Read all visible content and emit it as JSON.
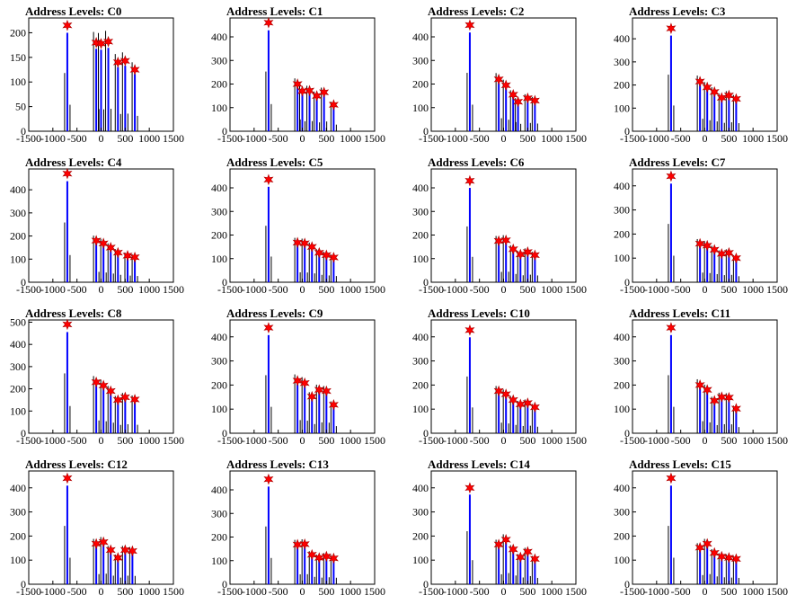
{
  "chart_data": {
    "type": "histogram",
    "xlim": [
      -1500,
      1500
    ],
    "x_ticks": [
      -1500,
      -1000,
      -500,
      0,
      500,
      1000,
      1500
    ],
    "colors": {
      "histogram": "#0000ff",
      "overlay": "#000000",
      "marker": "#ff0000"
    },
    "panels": [
      {
        "title": "Address Levels: C0",
        "ylim": [
          0,
          230
        ],
        "y_ticks": [
          0,
          50,
          100,
          150,
          200
        ],
        "peaks_x": [
          -700,
          -100,
          0,
          150,
          350,
          500,
          700
        ],
        "peaks_y": [
          215,
          180,
          178,
          182,
          140,
          143,
          125
        ]
      },
      {
        "title": "Address Levels: C1",
        "ylim": [
          0,
          480
        ],
        "y_ticks": [
          0,
          100,
          200,
          300,
          400
        ],
        "peaks_x": [
          -700,
          -100,
          0,
          150,
          300,
          450,
          650
        ],
        "peaks_y": [
          460,
          200,
          170,
          172,
          150,
          165,
          112
        ]
      },
      {
        "title": "Address Levels: C2",
        "ylim": [
          0,
          480
        ],
        "y_ticks": [
          0,
          100,
          200,
          300,
          400
        ],
        "peaks_x": [
          -700,
          -100,
          50,
          200,
          300,
          500,
          650
        ],
        "peaks_y": [
          450,
          220,
          195,
          155,
          125,
          140,
          130
        ]
      },
      {
        "title": "Address Levels: C3",
        "ylim": [
          0,
          490
        ],
        "y_ticks": [
          0,
          100,
          200,
          300,
          400
        ],
        "peaks_x": [
          -700,
          -100,
          50,
          200,
          350,
          500,
          650
        ],
        "peaks_y": [
          445,
          215,
          190,
          170,
          145,
          155,
          140
        ]
      },
      {
        "title": "Address Levels: C4",
        "ylim": [
          0,
          490
        ],
        "y_ticks": [
          0,
          100,
          200,
          300,
          400
        ],
        "peaks_x": [
          -700,
          -100,
          50,
          200,
          350,
          550,
          700
        ],
        "peaks_y": [
          470,
          180,
          168,
          150,
          128,
          115,
          108
        ]
      },
      {
        "title": "Address Levels: C5",
        "ylim": [
          0,
          480
        ],
        "y_ticks": [
          0,
          100,
          200,
          300,
          400
        ],
        "peaks_x": [
          -700,
          -100,
          50,
          200,
          350,
          500,
          650
        ],
        "peaks_y": [
          435,
          168,
          165,
          150,
          125,
          115,
          105
        ]
      },
      {
        "title": "Address Levels: C6",
        "ylim": [
          0,
          480
        ],
        "y_ticks": [
          0,
          100,
          200,
          300,
          400
        ],
        "peaks_x": [
          -700,
          -100,
          50,
          200,
          350,
          500,
          650
        ],
        "peaks_y": [
          430,
          175,
          178,
          140,
          118,
          128,
          115
        ]
      },
      {
        "title": "Address Levels: C7",
        "ylim": [
          0,
          470
        ],
        "y_ticks": [
          0,
          100,
          200,
          300,
          400
        ],
        "peaks_x": [
          -700,
          -100,
          50,
          200,
          350,
          500,
          650
        ],
        "peaks_y": [
          440,
          160,
          152,
          135,
          118,
          122,
          100
        ]
      },
      {
        "title": "Address Levels: C8",
        "ylim": [
          0,
          510
        ],
        "y_ticks": [
          0,
          100,
          200,
          300,
          400,
          500
        ],
        "peaks_x": [
          -700,
          -100,
          50,
          200,
          350,
          500,
          700
        ],
        "peaks_y": [
          490,
          230,
          215,
          190,
          150,
          162,
          152
        ]
      },
      {
        "title": "Address Levels: C9",
        "ylim": [
          0,
          470
        ],
        "y_ticks": [
          0,
          100,
          200,
          300,
          400
        ],
        "peaks_x": [
          -700,
          -100,
          50,
          200,
          350,
          500,
          650
        ],
        "peaks_y": [
          438,
          218,
          208,
          152,
          180,
          175,
          118
        ]
      },
      {
        "title": "Address Levels: C10",
        "ylim": [
          0,
          470
        ],
        "y_ticks": [
          0,
          100,
          200,
          300,
          400
        ],
        "peaks_x": [
          -700,
          -100,
          50,
          200,
          350,
          500,
          650
        ],
        "peaks_y": [
          428,
          175,
          162,
          138,
          120,
          125,
          108
        ]
      },
      {
        "title": "Address Levels: C11",
        "ylim": [
          0,
          470
        ],
        "y_ticks": [
          0,
          100,
          200,
          300,
          400
        ],
        "peaks_x": [
          -700,
          -100,
          50,
          200,
          350,
          500,
          650
        ],
        "peaks_y": [
          438,
          200,
          180,
          135,
          150,
          148,
          102
        ]
      },
      {
        "title": "Address Levels: C12",
        "ylim": [
          0,
          470
        ],
        "y_ticks": [
          0,
          100,
          200,
          300,
          400
        ],
        "peaks_x": [
          -700,
          -100,
          50,
          200,
          350,
          500,
          650
        ],
        "peaks_y": [
          440,
          168,
          175,
          142,
          110,
          142,
          138
        ]
      },
      {
        "title": "Address Levels: C13",
        "ylim": [
          0,
          480
        ],
        "y_ticks": [
          0,
          100,
          200,
          300,
          400
        ],
        "peaks_x": [
          -700,
          -100,
          50,
          200,
          350,
          500,
          650
        ],
        "peaks_y": [
          445,
          168,
          170,
          125,
          112,
          118,
          110
        ]
      },
      {
        "title": "Address Levels: C14",
        "ylim": [
          0,
          470
        ],
        "y_ticks": [
          0,
          100,
          200,
          300,
          400
        ],
        "peaks_x": [
          -700,
          -100,
          50,
          200,
          350,
          500,
          650
        ],
        "peaks_y": [
          400,
          165,
          185,
          145,
          112,
          135,
          105
        ]
      },
      {
        "title": "Address Levels: C15",
        "ylim": [
          0,
          470
        ],
        "y_ticks": [
          0,
          100,
          200,
          300,
          400
        ],
        "peaks_x": [
          -700,
          -100,
          50,
          200,
          350,
          500,
          650
        ],
        "peaks_y": [
          440,
          152,
          168,
          130,
          115,
          110,
          105
        ]
      }
    ]
  }
}
